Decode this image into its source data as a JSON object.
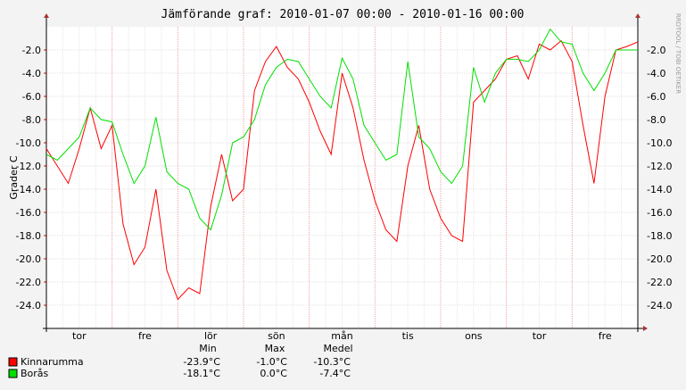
{
  "chart_data": {
    "type": "line",
    "title": "Jämförande graf: 2010-01-07 00:00 - 2010-01-16 00:00",
    "y_label": "Grader C",
    "side_label": "RRDTOOL / TOBI OETIKER",
    "x": [
      0,
      4,
      8,
      12,
      16,
      20,
      24,
      28,
      32,
      36,
      40,
      44,
      48,
      52,
      56,
      60,
      64,
      68,
      72,
      76,
      80,
      84,
      88,
      92,
      96,
      100,
      104,
      108,
      112,
      116,
      120,
      124,
      128,
      132,
      136,
      140,
      144,
      148,
      152,
      156,
      160,
      164,
      168,
      172,
      176,
      180,
      184,
      188,
      192,
      196,
      200,
      204,
      208,
      212,
      216
    ],
    "xlim": [
      0,
      216
    ],
    "xticks": [
      {
        "value": 12,
        "label": "tor"
      },
      {
        "value": 36,
        "label": "fre"
      },
      {
        "value": 60,
        "label": "lör"
      },
      {
        "value": 84,
        "label": "sön"
      },
      {
        "value": 108,
        "label": "mån"
      },
      {
        "value": 132,
        "label": "tis"
      },
      {
        "value": 156,
        "label": "ons"
      },
      {
        "value": 180,
        "label": "tor"
      },
      {
        "value": 204,
        "label": "fre"
      }
    ],
    "ylim": [
      -26,
      0
    ],
    "yticks": [
      {
        "value": -24,
        "label": "-24.0"
      },
      {
        "value": -22,
        "label": "-22.0"
      },
      {
        "value": -20,
        "label": "-20.0"
      },
      {
        "value": -18,
        "label": "-18.0"
      },
      {
        "value": -16,
        "label": "-16.0"
      },
      {
        "value": -14,
        "label": "-14.0"
      },
      {
        "value": -12,
        "label": "-12.0"
      },
      {
        "value": -10,
        "label": "-10.0"
      },
      {
        "value": -8,
        "label": "-8.0"
      },
      {
        "value": -6,
        "label": "-6.0"
      },
      {
        "value": -4,
        "label": "-4.0"
      },
      {
        "value": -2,
        "label": "-2.0"
      }
    ],
    "grid": true,
    "series": [
      {
        "name": "Kinnarumma",
        "color": "#ff0000",
        "values": [
          -10.5,
          -12,
          -13.5,
          -10.5,
          -7,
          -10.5,
          -8.5,
          -17,
          -20.5,
          -19,
          -14,
          -21,
          -23.5,
          -22.5,
          -23,
          -15.5,
          -11,
          -15,
          -14,
          -5.5,
          -3,
          -1.7,
          -3.5,
          -4.5,
          -6.5,
          -9,
          -11,
          -4,
          -7,
          -11.5,
          -15,
          -17.5,
          -18.5,
          -12,
          -8.5,
          -14,
          -16.5,
          -18,
          -18.5,
          -6.5,
          -5.5,
          -4.5,
          -2.8,
          -2.5,
          -4.5,
          -1.5,
          -2,
          -1.2,
          -3,
          -8.5,
          -13.5,
          -6,
          -2,
          -1.7,
          -1.3
        ]
      },
      {
        "name": "Borås",
        "color": "#00e000",
        "values": [
          -11,
          -11.5,
          -10.5,
          -9.5,
          -7,
          -8,
          -8.2,
          -11,
          -13.5,
          -12,
          -7.8,
          -12.5,
          -13.5,
          -14,
          -16.5,
          -17.5,
          -14.5,
          -10,
          -9.5,
          -8,
          -5,
          -3.5,
          -2.8,
          -3,
          -4.5,
          -6,
          -7,
          -2.7,
          -4.5,
          -8.5,
          -10,
          -11.5,
          -11,
          -3,
          -9.5,
          -10.5,
          -12.5,
          -13.5,
          -12,
          -3.5,
          -6.5,
          -4,
          -2.8,
          -2.8,
          -3,
          -2,
          -0.2,
          -1.3,
          -1.5,
          -4,
          -5.5,
          -4,
          -2,
          -2,
          -2
        ]
      }
    ],
    "legend_table": {
      "header": [
        "Min",
        "Max",
        "Medel"
      ],
      "rows": [
        [
          "-23.9°C",
          "-1.0°C",
          "-10.3°C"
        ],
        [
          "-18.1°C",
          "0.0°C",
          "-7.4°C"
        ]
      ]
    }
  }
}
